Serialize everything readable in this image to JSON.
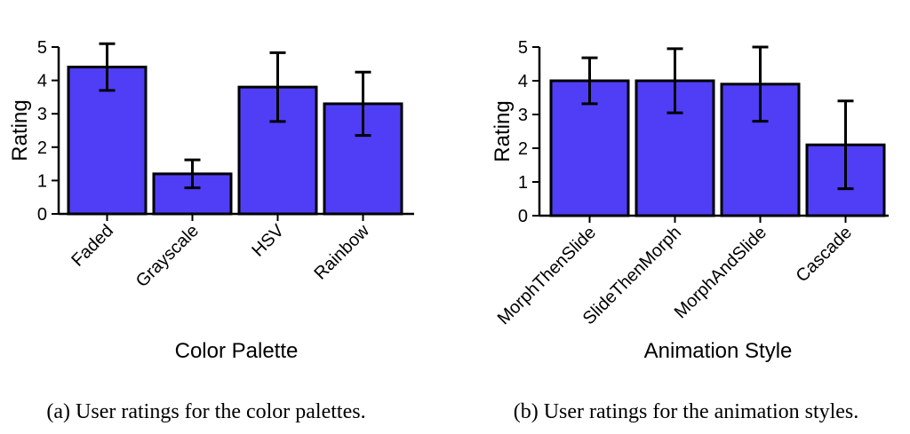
{
  "chart_data": [
    {
      "type": "bar",
      "categories": [
        "Faded",
        "Grayscale",
        "HSV",
        "Rainbow"
      ],
      "values": [
        4.4,
        1.2,
        3.8,
        3.3
      ],
      "error": [
        0.7,
        0.42,
        1.03,
        0.95
      ],
      "xlabel": "Color Palette",
      "ylabel": "Rating",
      "ylim": [
        0,
        5
      ],
      "yticks": [
        "0",
        "1",
        "2",
        "3",
        "4",
        "5"
      ],
      "caption": "(a) User ratings for the color palettes.",
      "bar_color": "#4f3ef5",
      "grid": false
    },
    {
      "type": "bar",
      "categories": [
        "MorphThenSlide",
        "SlideThenMorph",
        "MorphAndSlide",
        "Cascade"
      ],
      "values": [
        4.0,
        4.0,
        3.9,
        2.1
      ],
      "error": [
        0.68,
        0.95,
        1.1,
        1.3
      ],
      "xlabel": "Animation Style",
      "ylabel": "Rating",
      "ylim": [
        0,
        5
      ],
      "yticks": [
        "0",
        "1",
        "2",
        "3",
        "4",
        "5"
      ],
      "caption": "(b) User ratings for the animation styles.",
      "bar_color": "#4f3ef5",
      "grid": false
    }
  ]
}
